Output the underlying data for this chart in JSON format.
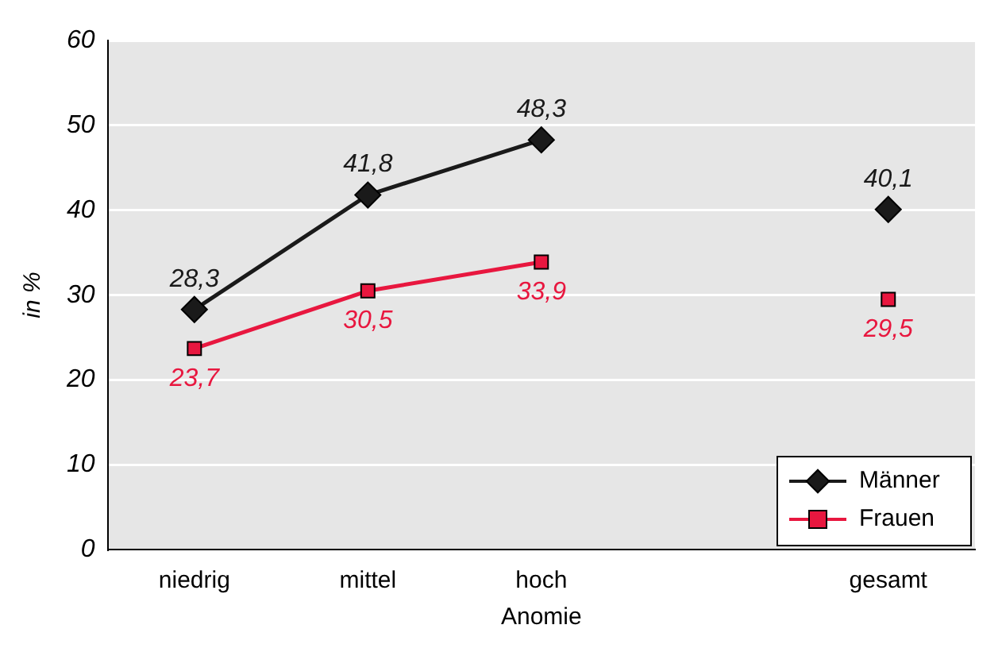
{
  "chart_data": {
    "type": "line",
    "xlabel": "Anomie",
    "ylabel": "in %",
    "categories": [
      "niedrig",
      "mittel",
      "hoch",
      null,
      "gesamt"
    ],
    "series": [
      {
        "name": "Männer",
        "color": "#1a1a1a",
        "marker": "diamond",
        "values": [
          28.3,
          41.8,
          48.3,
          null,
          40.1
        ],
        "value_labels": [
          "28,3",
          "41,8",
          "48,3",
          null,
          "40,1"
        ]
      },
      {
        "name": "Frauen",
        "color": "#e8173f",
        "marker": "square",
        "values": [
          23.7,
          30.5,
          33.9,
          null,
          29.5
        ],
        "value_labels": [
          "23,7",
          "30,5",
          "33,9",
          null,
          "29,5"
        ]
      }
    ],
    "ylim": [
      0,
      60
    ],
    "yticks": [
      0,
      10,
      20,
      30,
      40,
      50,
      60
    ],
    "grid": "y",
    "legend": "bottom right"
  }
}
